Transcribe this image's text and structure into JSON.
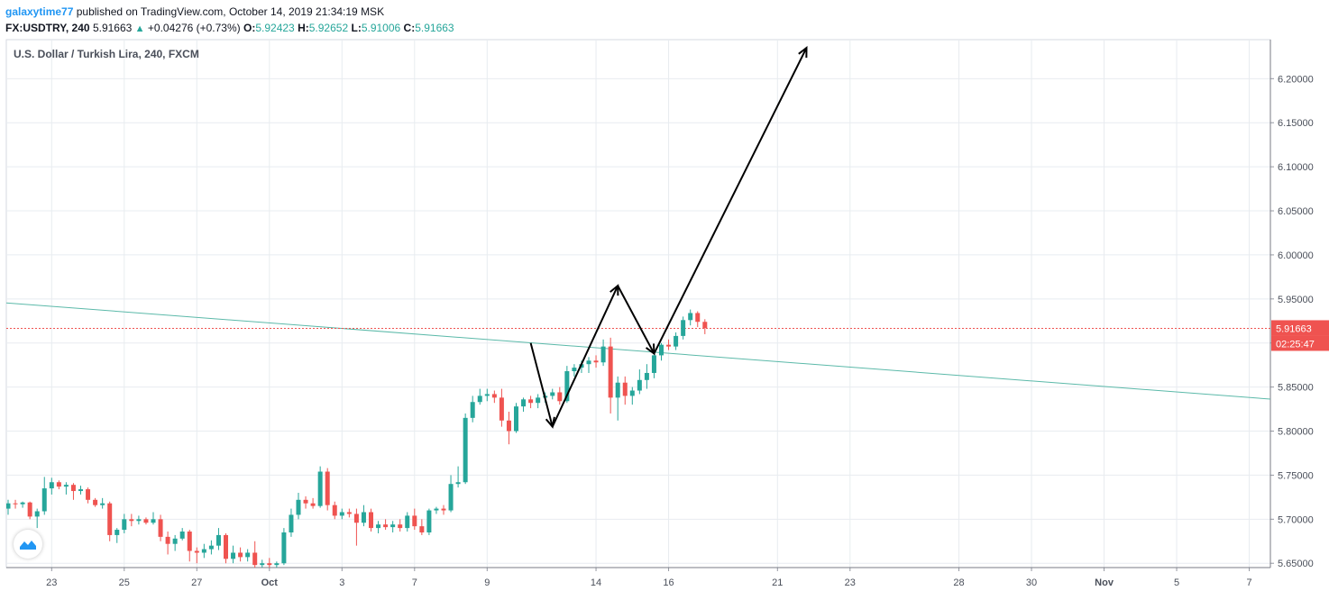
{
  "header": {
    "user": "galaxytime77",
    "published": "published on TradingView.com, October 14, 2019 21:34:19 MSK",
    "symbol_interval": "FX:USDTRY, 240",
    "last_price": "5.91663",
    "change": "+0.04276 (+0.73%)",
    "o_label": "O:",
    "o_value": "5.92423",
    "h_label": "H:",
    "h_value": "5.92652",
    "l_label": "L:",
    "l_value": "5.91006",
    "c_label": "C:",
    "c_value": "5.91663"
  },
  "legend": "U.S. Dollar / Turkish Lira, 240, FXCM",
  "colors": {
    "up": "#26a69a",
    "down": "#ef5350",
    "trendline": "#5bb9a9",
    "price_line": "#ef5350",
    "grid": "#e8ecf0",
    "brand": "#2196f3"
  },
  "chart_data": {
    "type": "candlestick",
    "symbol": "USDTRY",
    "interval": "240",
    "ylim": [
      5.62,
      6.225
    ],
    "y_ticks": [
      "6.20000",
      "6.15000",
      "6.10000",
      "6.05000",
      "6.00000",
      "5.95000",
      "5.90000",
      "5.85000",
      "5.80000",
      "5.75000",
      "5.70000",
      "5.65000"
    ],
    "x_ticks": [
      {
        "i": 6,
        "label": "23"
      },
      {
        "i": 16,
        "label": "25"
      },
      {
        "i": 26,
        "label": "27"
      },
      {
        "i": 36,
        "label": "Oct"
      },
      {
        "i": 46,
        "label": "3"
      },
      {
        "i": 56,
        "label": "7"
      },
      {
        "i": 66,
        "label": "9"
      },
      {
        "i": 81,
        "label": "14"
      },
      {
        "i": 91,
        "label": "16"
      },
      {
        "i": 106,
        "label": "21"
      },
      {
        "i": 116,
        "label": "23"
      },
      {
        "i": 131,
        "label": "28"
      },
      {
        "i": 141,
        "label": "30"
      },
      {
        "i": 151,
        "label": "Nov"
      },
      {
        "i": 161,
        "label": "5"
      },
      {
        "i": 171,
        "label": "7"
      }
    ],
    "candles": [
      [
        5.712,
        5.722,
        5.705,
        5.718
      ],
      [
        5.718,
        5.722,
        5.712,
        5.717
      ],
      [
        5.717,
        5.72,
        5.713,
        5.719
      ],
      [
        5.719,
        5.72,
        5.7,
        5.703
      ],
      [
        5.703,
        5.712,
        5.69,
        5.709
      ],
      [
        5.709,
        5.748,
        5.705,
        5.735
      ],
      [
        5.735,
        5.747,
        5.728,
        5.742
      ],
      [
        5.742,
        5.744,
        5.734,
        5.737
      ],
      [
        5.737,
        5.742,
        5.728,
        5.739
      ],
      [
        5.739,
        5.741,
        5.722,
        5.732
      ],
      [
        5.732,
        5.738,
        5.728,
        5.734
      ],
      [
        5.734,
        5.736,
        5.718,
        5.722
      ],
      [
        5.722,
        5.724,
        5.714,
        5.716
      ],
      [
        5.716,
        5.724,
        5.712,
        5.718
      ],
      [
        5.718,
        5.72,
        5.675,
        5.682
      ],
      [
        5.682,
        5.69,
        5.673,
        5.688
      ],
      [
        5.688,
        5.706,
        5.684,
        5.7
      ],
      [
        5.7,
        5.706,
        5.692,
        5.698
      ],
      [
        5.698,
        5.704,
        5.694,
        5.7
      ],
      [
        5.7,
        5.702,
        5.694,
        5.696
      ],
      [
        5.696,
        5.708,
        5.694,
        5.7
      ],
      [
        5.7,
        5.705,
        5.675,
        5.68
      ],
      [
        5.68,
        5.686,
        5.66,
        5.672
      ],
      [
        5.672,
        5.682,
        5.664,
        5.678
      ],
      [
        5.678,
        5.69,
        5.676,
        5.686
      ],
      [
        5.686,
        5.688,
        5.652,
        5.664
      ],
      [
        5.664,
        5.668,
        5.65,
        5.662
      ],
      [
        5.662,
        5.672,
        5.656,
        5.666
      ],
      [
        5.666,
        5.676,
        5.66,
        5.67
      ],
      [
        5.67,
        5.69,
        5.665,
        5.682
      ],
      [
        5.682,
        5.684,
        5.65,
        5.655
      ],
      [
        5.655,
        5.67,
        5.65,
        5.662
      ],
      [
        5.662,
        5.668,
        5.652,
        5.657
      ],
      [
        5.657,
        5.666,
        5.652,
        5.662
      ],
      [
        5.662,
        5.675,
        5.64,
        5.648
      ],
      [
        5.648,
        5.654,
        5.642,
        5.65
      ],
      [
        5.65,
        5.656,
        5.643,
        5.648
      ],
      [
        5.648,
        5.652,
        5.642,
        5.65
      ],
      [
        5.65,
        5.69,
        5.648,
        5.685
      ],
      [
        5.685,
        5.712,
        5.68,
        5.705
      ],
      [
        5.705,
        5.73,
        5.7,
        5.722
      ],
      [
        5.722,
        5.726,
        5.712,
        5.718
      ],
      [
        5.718,
        5.724,
        5.712,
        5.715
      ],
      [
        5.715,
        5.76,
        5.713,
        5.754
      ],
      [
        5.754,
        5.758,
        5.71,
        5.716
      ],
      [
        5.716,
        5.72,
        5.7,
        5.704
      ],
      [
        5.704,
        5.712,
        5.7,
        5.708
      ],
      [
        5.708,
        5.712,
        5.702,
        5.706
      ],
      [
        5.706,
        5.712,
        5.67,
        5.696
      ],
      [
        5.696,
        5.716,
        5.692,
        5.708
      ],
      [
        5.708,
        5.712,
        5.686,
        5.69
      ],
      [
        5.69,
        5.698,
        5.684,
        5.694
      ],
      [
        5.694,
        5.7,
        5.688,
        5.691
      ],
      [
        5.691,
        5.698,
        5.685,
        5.694
      ],
      [
        5.694,
        5.7,
        5.686,
        5.69
      ],
      [
        5.69,
        5.708,
        5.686,
        5.704
      ],
      [
        5.704,
        5.712,
        5.688,
        5.692
      ],
      [
        5.692,
        5.7,
        5.682,
        5.685
      ],
      [
        5.685,
        5.712,
        5.682,
        5.71
      ],
      [
        5.71,
        5.714,
        5.706,
        5.712
      ],
      [
        5.712,
        5.716,
        5.705,
        5.71
      ],
      [
        5.71,
        5.75,
        5.708,
        5.74
      ],
      [
        5.74,
        5.76,
        5.736,
        5.742
      ],
      [
        5.742,
        5.82,
        5.74,
        5.815
      ],
      [
        5.815,
        5.84,
        5.81,
        5.833
      ],
      [
        5.833,
        5.848,
        5.83,
        5.84
      ],
      [
        5.84,
        5.848,
        5.834,
        5.842
      ],
      [
        5.842,
        5.846,
        5.832,
        5.838
      ],
      [
        5.838,
        5.848,
        5.805,
        5.812
      ],
      [
        5.812,
        5.822,
        5.785,
        5.8
      ],
      [
        5.8,
        5.832,
        5.798,
        5.828
      ],
      [
        5.828,
        5.838,
        5.822,
        5.836
      ],
      [
        5.836,
        5.84,
        5.826,
        5.832
      ],
      [
        5.832,
        5.842,
        5.826,
        5.838
      ],
      [
        5.838,
        5.844,
        5.832,
        5.84
      ],
      [
        5.84,
        5.848,
        5.836,
        5.844
      ],
      [
        5.844,
        5.85,
        5.83,
        5.834
      ],
      [
        5.834,
        5.874,
        5.832,
        5.868
      ],
      [
        5.868,
        5.876,
        5.862,
        5.872
      ],
      [
        5.872,
        5.88,
        5.866,
        5.876
      ],
      [
        5.876,
        5.884,
        5.866,
        5.88
      ],
      [
        5.88,
        5.886,
        5.872,
        5.878
      ],
      [
        5.878,
        5.904,
        5.874,
        5.896
      ],
      [
        5.896,
        5.906,
        5.82,
        5.838
      ],
      [
        5.838,
        5.862,
        5.812,
        5.855
      ],
      [
        5.855,
        5.862,
        5.83,
        5.84
      ],
      [
        5.84,
        5.85,
        5.83,
        5.846
      ],
      [
        5.846,
        5.87,
        5.842,
        5.858
      ],
      [
        5.858,
        5.876,
        5.848,
        5.866
      ],
      [
        5.866,
        5.892,
        5.86,
        5.886
      ],
      [
        5.886,
        5.9,
        5.88,
        5.898
      ],
      [
        5.898,
        5.904,
        5.892,
        5.896
      ],
      [
        5.896,
        5.912,
        5.892,
        5.908
      ],
      [
        5.908,
        5.93,
        5.904,
        5.926
      ],
      [
        5.926,
        5.938,
        5.92,
        5.934
      ],
      [
        5.934,
        5.936,
        5.918,
        5.924
      ],
      [
        5.924,
        5.927,
        5.91,
        5.917
      ]
    ],
    "candle_x": [
      0,
      1,
      2,
      3,
      4,
      5,
      6,
      7,
      8,
      9,
      10,
      11,
      12,
      13,
      14,
      15,
      16,
      17,
      18,
      19,
      20,
      21,
      22,
      23,
      24,
      25,
      26,
      27,
      28,
      29,
      30,
      31,
      32,
      33,
      34,
      35,
      36,
      37,
      38,
      39,
      40,
      41,
      42,
      43,
      44,
      45,
      46,
      47,
      48,
      49,
      50,
      51,
      52,
      53,
      54,
      55,
      56,
      57,
      58,
      59,
      60,
      61,
      62,
      63,
      64,
      65,
      66,
      67,
      68,
      69,
      70,
      71,
      72,
      73,
      74,
      75,
      76,
      77,
      78,
      79,
      80,
      81,
      82,
      83,
      84,
      85,
      86,
      87,
      88,
      89,
      90,
      91,
      92,
      93,
      94,
      95,
      96
    ],
    "trendline": {
      "from": [
        -1,
        5.946
      ],
      "to": [
        176,
        5.835
      ]
    },
    "price_line": 5.91663,
    "price_label": "5.91663",
    "countdown_label": "02:25:47",
    "arrows": [
      {
        "from": [
          72,
          5.9
        ],
        "to": [
          75,
          5.805
        ]
      },
      {
        "from": [
          75,
          5.805
        ],
        "to": [
          84,
          5.965
        ]
      },
      {
        "from": [
          84,
          5.965
        ],
        "to": [
          89,
          5.888
        ]
      },
      {
        "from": [
          89,
          5.888
        ],
        "to": [
          110,
          6.235
        ]
      }
    ]
  }
}
